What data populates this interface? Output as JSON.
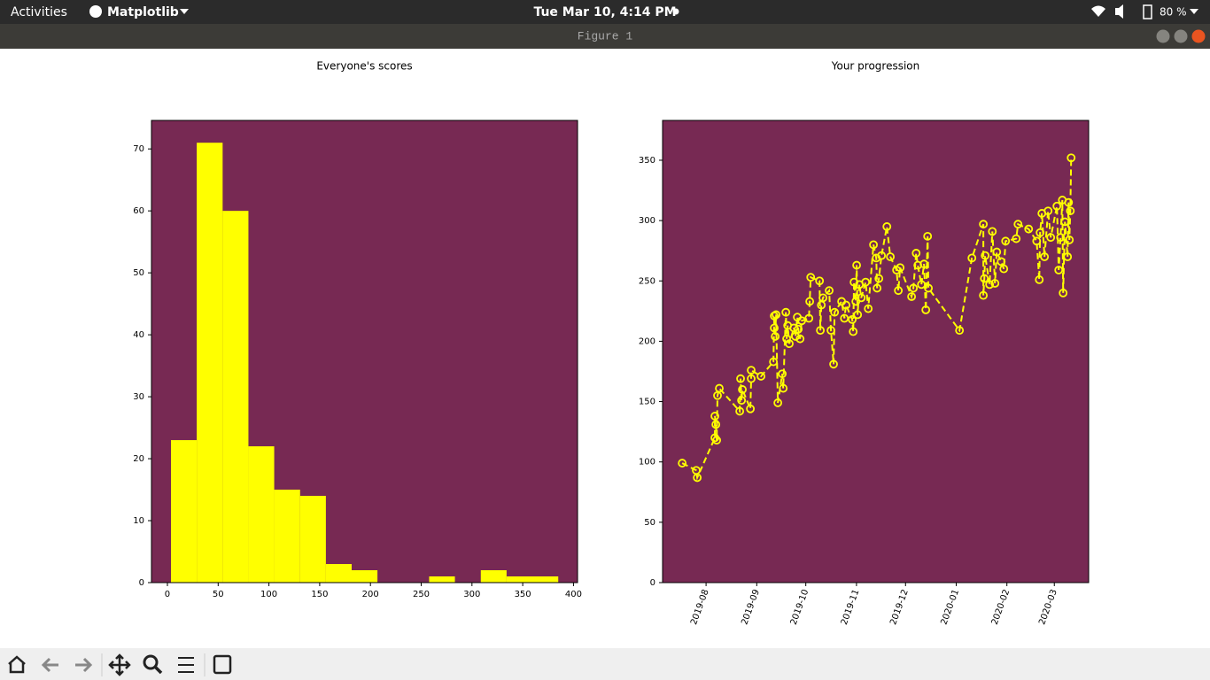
{
  "top_bar": {
    "activities": "Activities",
    "app": "Matplotlib",
    "clock": "Tue Mar 10,  4:14 PM",
    "battery": "80 %"
  },
  "window": {
    "title": "Figure 1"
  },
  "chart_data": [
    {
      "type": "histogram",
      "title": "Everyone's scores",
      "color": "#ffff00",
      "background": "#772953",
      "bins": [
        3.5,
        28.9,
        54.4,
        79.8,
        105.2,
        130.7,
        156.1,
        181.5,
        206.9,
        232.4,
        257.8,
        283.2,
        308.7,
        334.1,
        359.5,
        385
      ],
      "values": [
        23,
        71,
        60,
        22,
        15,
        14,
        3,
        2,
        0,
        0,
        1,
        0,
        2,
        1,
        1
      ],
      "xlim": [
        -15.7,
        404
      ],
      "ylim": [
        0,
        74.6
      ],
      "xticks": [
        0,
        50,
        100,
        150,
        200,
        250,
        300,
        350,
        400
      ],
      "yticks": [
        0,
        10,
        20,
        30,
        40,
        50,
        60,
        70
      ]
    },
    {
      "type": "line",
      "title": "Your progression",
      "color": "#ffff00",
      "background": "#772953",
      "line_style": "dashed",
      "marker": "circle",
      "x": [
        18094.4,
        18103.0,
        18103.6,
        18114.4,
        18114.4,
        18115.0,
        18115.5,
        18116.0,
        18117.1,
        18129.6,
        18130.1,
        18130.7,
        18131.2,
        18136.1,
        18136.6,
        18136.6,
        18142.6,
        18150.2,
        18150.7,
        18150.7,
        18151.3,
        18151.8,
        18152.9,
        18155.6,
        18156.2,
        18157.8,
        18158.3,
        18158.9,
        18159.9,
        18162.7,
        18163.7,
        18164.8,
        18165.4,
        18166.5,
        18167.5,
        18171.9,
        18172.4,
        18173.0,
        18178.4,
        18178.9,
        18179.5,
        18180.5,
        18184.3,
        18185.4,
        18187.0,
        18187.6,
        18191.9,
        18193.6,
        18194.6,
        18198.4,
        18199.0,
        18199.5,
        18200.6,
        18201.1,
        18201.7,
        18202.8,
        18203.9,
        18206.6,
        18208.2,
        18211.4,
        18213.1,
        18213.6,
        18214.7,
        18216.3,
        18219.6,
        18221.7,
        18225.5,
        18226.6,
        18227.7,
        18234.7,
        18235.8,
        18237.5,
        18238.5,
        18240.7,
        18242.3,
        18243.4,
        18244.5,
        18245.0,
        18264.0,
        18271.6,
        18278.6,
        18278.6,
        18279.2,
        18279.7,
        18282.4,
        18284.1,
        18285.7,
        18286.8,
        18289.5,
        18291.1,
        18292.2,
        18298.7,
        18299.8,
        18306.3,
        18311.2,
        18312.8,
        18313.3,
        18314.4,
        18316.0,
        18318.2,
        18319.8,
        18323.6,
        18324.7,
        18325.8,
        18326.9,
        18327.4,
        18328.5,
        18330.1,
        18330.7,
        18331.2,
        18331.8,
        18332.3
      ],
      "values": [
        99,
        93,
        87,
        120,
        138,
        131,
        118,
        155,
        161,
        142,
        169,
        151,
        160,
        144,
        169,
        176,
        171,
        183,
        221,
        211,
        204,
        222,
        149,
        173,
        161,
        224,
        202,
        213,
        198,
        211,
        204,
        220,
        210,
        202,
        217,
        219,
        233,
        253,
        250,
        209,
        230,
        236,
        242,
        209,
        181,
        224,
        233,
        219,
        230,
        218,
        208,
        249,
        233,
        263,
        222,
        247,
        236,
        249,
        227,
        280,
        269,
        244,
        252,
        271,
        295,
        270,
        259,
        242,
        261,
        237,
        244,
        273,
        263,
        247,
        264,
        226,
        287,
        244,
        209,
        269,
        297,
        238,
        252,
        271,
        247,
        291,
        248,
        274,
        266,
        260,
        283,
        285,
        297,
        293,
        283,
        251,
        290,
        306,
        270,
        308,
        286,
        312,
        259,
        286,
        317,
        240,
        299,
        270,
        315,
        284,
        308,
        352
      ],
      "xlim": [
        18082.4,
        18343
      ],
      "ylim": [
        0,
        383
      ],
      "xticks": [
        {
          "value": 18109,
          "label": "2019-08"
        },
        {
          "value": 18140,
          "label": "2019-09"
        },
        {
          "value": 18170,
          "label": "2019-10"
        },
        {
          "value": 18201,
          "label": "2019-11"
        },
        {
          "value": 18231,
          "label": "2019-12"
        },
        {
          "value": 18262,
          "label": "2020-01"
        },
        {
          "value": 18293,
          "label": "2020-02"
        },
        {
          "value": 18322,
          "label": "2020-03"
        }
      ],
      "yticks": [
        0,
        50,
        100,
        150,
        200,
        250,
        300,
        350
      ]
    }
  ]
}
